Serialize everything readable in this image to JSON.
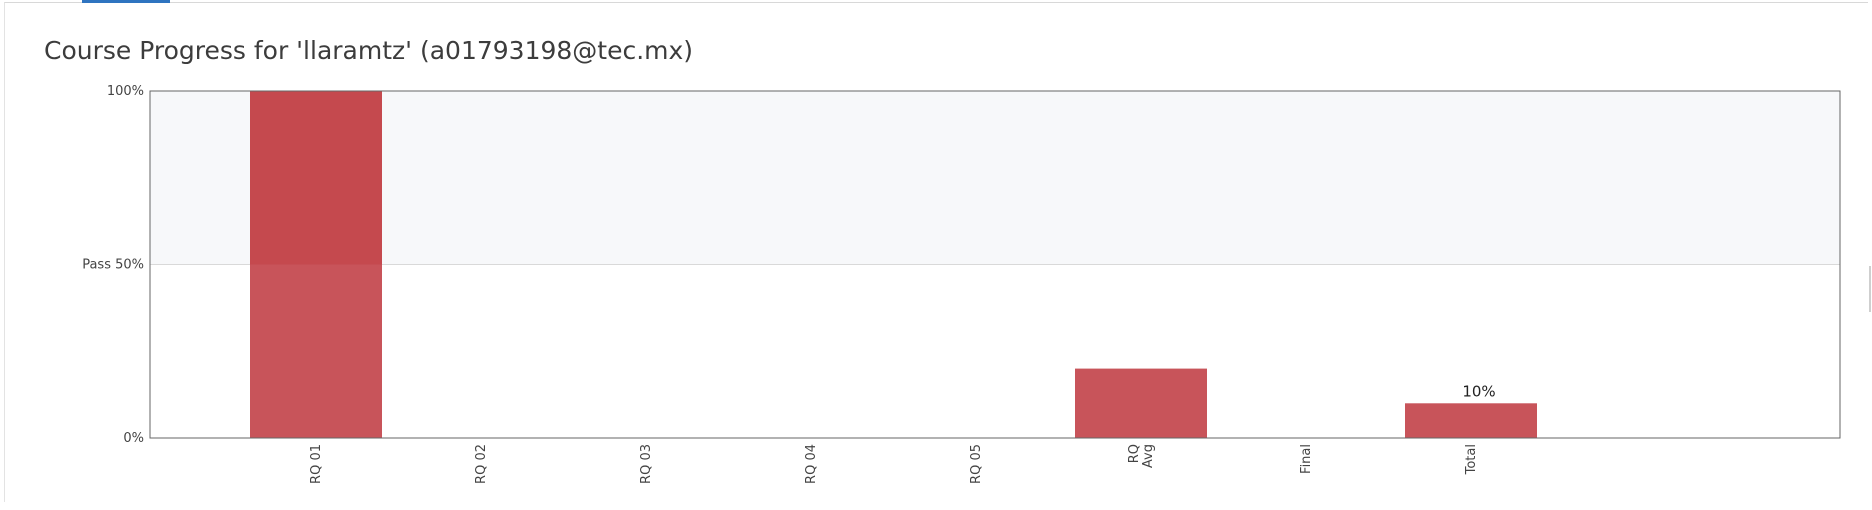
{
  "page": {
    "title": "Course Progress for 'llaramtz' (a01793198@tec.mx)"
  },
  "chart_data": {
    "type": "bar",
    "title": "Course Progress for 'llaramtz' (a01793198@tec.mx)",
    "xlabel": "",
    "ylabel": "",
    "categories": [
      [
        "RQ 01"
      ],
      [
        "RQ 02"
      ],
      [
        "RQ 03"
      ],
      [
        "RQ 04"
      ],
      [
        "RQ 05"
      ],
      [
        "RQ",
        "Avg"
      ],
      [
        "Final"
      ],
      [
        "Total"
      ]
    ],
    "values": [
      100,
      0,
      0,
      0,
      0,
      20,
      0,
      10
    ],
    "data_labels": [
      "",
      "",
      "",
      "",
      "",
      "",
      "",
      "10%"
    ],
    "ylim": [
      0,
      100
    ],
    "y_ticks": [
      {
        "value": 0,
        "label": "0%"
      },
      {
        "value": 50,
        "label": "Pass 50%"
      },
      {
        "value": 100,
        "label": "100%"
      }
    ],
    "pass_threshold": 50,
    "colors": {
      "bar": "#c8545a",
      "bar_above_pass": "#c5494e",
      "pass_band": "#f7f8fa",
      "gridline": "#d9d9d9",
      "axis": "#666666"
    },
    "grid": true,
    "legend": "none"
  }
}
